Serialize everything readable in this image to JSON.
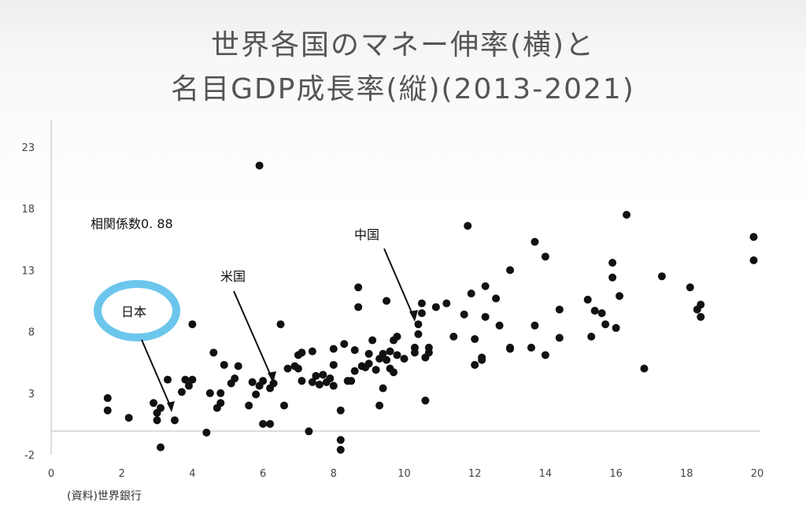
{
  "title_line1": "世界各国のマネー伸率(横)と",
  "title_line2": "名目GDP成長率(縦)(2013-2021)",
  "source": "(資料)世界銀行",
  "colors": {
    "point": "#111111",
    "japan_ring": "#6cc6ec",
    "axis": "#bbbbbb"
  },
  "chart_data": {
    "type": "scatter",
    "title": "世界各国のマネー伸率(横)と名目GDP成長率(縦)(2013-2021)",
    "xlim": [
      0,
      20
    ],
    "ylim": [
      -2,
      23
    ],
    "x_ticks": [
      "0",
      "2",
      "4",
      "6",
      "8",
      "10",
      "12",
      "14",
      "16",
      "18",
      "20"
    ],
    "y_ticks": [
      "-2",
      "3",
      "8",
      "13",
      "18",
      "23"
    ],
    "grid": false,
    "annotations": {
      "correlation": "相関係数0. 88",
      "japan": "日本",
      "usa": "米国",
      "china": "中国"
    },
    "points": [
      [
        1.6,
        2.6
      ],
      [
        1.6,
        1.6
      ],
      [
        2.2,
        1.0
      ],
      [
        2.9,
        2.2
      ],
      [
        3.0,
        1.4
      ],
      [
        3.1,
        1.8
      ],
      [
        3.0,
        0.8
      ],
      [
        3.1,
        -1.4
      ],
      [
        3.5,
        0.8
      ],
      [
        3.3,
        4.1
      ],
      [
        3.7,
        3.1
      ],
      [
        3.8,
        4.1
      ],
      [
        3.9,
        3.6
      ],
      [
        4.0,
        4.1
      ],
      [
        4.0,
        8.6
      ],
      [
        4.4,
        -0.2
      ],
      [
        4.5,
        3.0
      ],
      [
        4.6,
        6.3
      ],
      [
        4.7,
        1.8
      ],
      [
        4.8,
        2.2
      ],
      [
        4.8,
        3.0
      ],
      [
        4.9,
        5.3
      ],
      [
        5.1,
        3.8
      ],
      [
        5.2,
        4.2
      ],
      [
        5.3,
        5.2
      ],
      [
        5.6,
        2.0
      ],
      [
        5.7,
        3.9
      ],
      [
        5.8,
        2.9
      ],
      [
        5.9,
        21.5
      ],
      [
        5.9,
        3.6
      ],
      [
        6.0,
        0.5
      ],
      [
        6.0,
        4.0
      ],
      [
        6.2,
        3.4
      ],
      [
        6.2,
        0.5
      ],
      [
        6.3,
        3.8
      ],
      [
        6.5,
        8.6
      ],
      [
        6.6,
        2.0
      ],
      [
        6.7,
        5.0
      ],
      [
        6.9,
        5.2
      ],
      [
        7.0,
        5.0
      ],
      [
        7.0,
        6.1
      ],
      [
        7.1,
        6.3
      ],
      [
        7.1,
        4.0
      ],
      [
        7.3,
        -0.1
      ],
      [
        7.4,
        3.9
      ],
      [
        7.4,
        6.4
      ],
      [
        7.5,
        4.4
      ],
      [
        7.6,
        3.7
      ],
      [
        7.7,
        4.5
      ],
      [
        7.8,
        3.9
      ],
      [
        7.9,
        4.2
      ],
      [
        8.0,
        5.3
      ],
      [
        8.0,
        3.6
      ],
      [
        8.0,
        6.6
      ],
      [
        8.2,
        1.6
      ],
      [
        8.2,
        -0.8
      ],
      [
        8.2,
        -1.6
      ],
      [
        8.3,
        7.0
      ],
      [
        8.4,
        4.0
      ],
      [
        8.5,
        4.0
      ],
      [
        8.6,
        6.5
      ],
      [
        8.6,
        4.8
      ],
      [
        8.7,
        11.6
      ],
      [
        8.7,
        10.0
      ],
      [
        8.8,
        5.2
      ],
      [
        8.9,
        5.1
      ],
      [
        9.0,
        5.4
      ],
      [
        9.0,
        6.2
      ],
      [
        9.1,
        7.3
      ],
      [
        9.2,
        4.9
      ],
      [
        9.3,
        2.0
      ],
      [
        9.3,
        5.8
      ],
      [
        9.4,
        6.2
      ],
      [
        9.4,
        3.4
      ],
      [
        9.5,
        5.7
      ],
      [
        9.5,
        10.5
      ],
      [
        9.6,
        5.0
      ],
      [
        9.6,
        6.4
      ],
      [
        9.7,
        7.3
      ],
      [
        9.7,
        4.7
      ],
      [
        9.8,
        7.6
      ],
      [
        9.8,
        6.1
      ],
      [
        10.0,
        5.8
      ],
      [
        10.3,
        6.7
      ],
      [
        10.3,
        6.3
      ],
      [
        10.4,
        8.6
      ],
      [
        10.4,
        7.8
      ],
      [
        10.5,
        10.3
      ],
      [
        10.5,
        9.5
      ],
      [
        10.6,
        2.4
      ],
      [
        10.6,
        5.9
      ],
      [
        10.7,
        6.3
      ],
      [
        10.7,
        6.7
      ],
      [
        10.9,
        10.0
      ],
      [
        11.2,
        10.3
      ],
      [
        11.4,
        7.6
      ],
      [
        11.7,
        9.4
      ],
      [
        11.8,
        16.6
      ],
      [
        11.9,
        11.1
      ],
      [
        12.0,
        7.4
      ],
      [
        12.0,
        5.3
      ],
      [
        12.2,
        5.7
      ],
      [
        12.2,
        5.9
      ],
      [
        12.3,
        11.7
      ],
      [
        12.3,
        9.2
      ],
      [
        12.6,
        10.7
      ],
      [
        12.7,
        8.5
      ],
      [
        13.0,
        6.6
      ],
      [
        13.0,
        6.7
      ],
      [
        13.0,
        13.0
      ],
      [
        13.6,
        6.7
      ],
      [
        13.7,
        8.5
      ],
      [
        13.7,
        15.3
      ],
      [
        14.0,
        14.1
      ],
      [
        14.0,
        6.1
      ],
      [
        14.4,
        9.8
      ],
      [
        14.4,
        7.5
      ],
      [
        15.2,
        10.6
      ],
      [
        15.3,
        7.6
      ],
      [
        15.4,
        9.7
      ],
      [
        15.6,
        9.5
      ],
      [
        15.7,
        8.6
      ],
      [
        15.9,
        13.6
      ],
      [
        15.9,
        12.4
      ],
      [
        16.0,
        8.3
      ],
      [
        16.1,
        10.9
      ],
      [
        16.3,
        17.5
      ],
      [
        16.8,
        5.0
      ],
      [
        17.3,
        12.5
      ],
      [
        18.1,
        11.6
      ],
      [
        18.3,
        9.8
      ],
      [
        18.4,
        10.2
      ],
      [
        18.4,
        9.2
      ],
      [
        19.9,
        15.7
      ],
      [
        19.9,
        13.8
      ]
    ]
  }
}
